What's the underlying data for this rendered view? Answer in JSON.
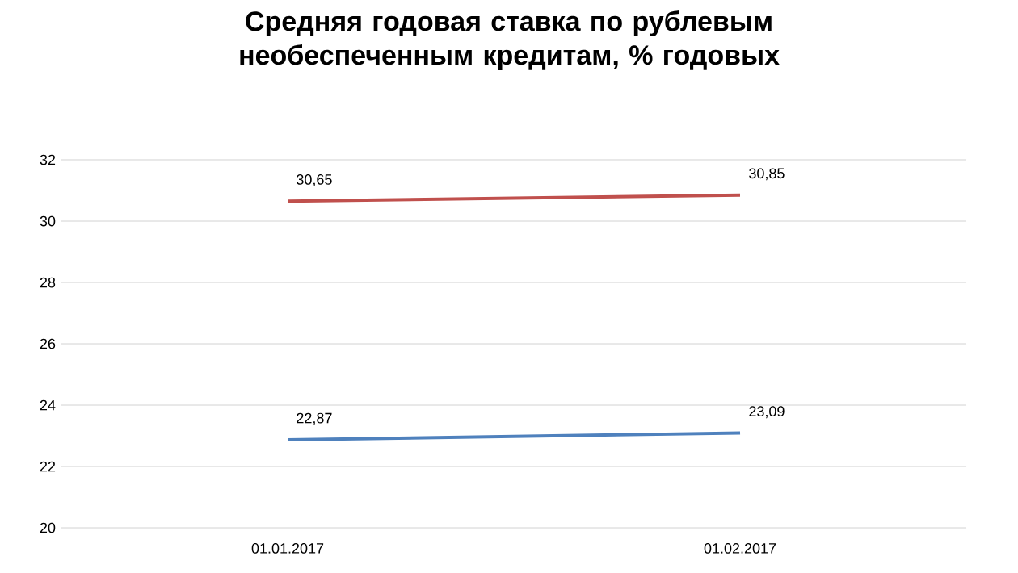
{
  "chart_data": {
    "type": "line",
    "title": "Средняя годовая ставка по рублевым необеспеченным кредитам, % годовых",
    "categories": [
      "01.01.2017",
      "01.02.2017"
    ],
    "series": [
      {
        "color": "#c0504d",
        "values": [
          30.65,
          30.85
        ],
        "value_labels": [
          "30,65",
          "30,85"
        ]
      },
      {
        "color": "#4f81bd",
        "values": [
          22.87,
          23.09
        ],
        "value_labels": [
          "22,87",
          "23,09"
        ]
      }
    ],
    "ylim": [
      20,
      32
    ],
    "yticks": [
      20,
      22,
      24,
      26,
      28,
      30,
      32
    ],
    "grid": "y",
    "marker": "none",
    "line_style": "solid"
  }
}
